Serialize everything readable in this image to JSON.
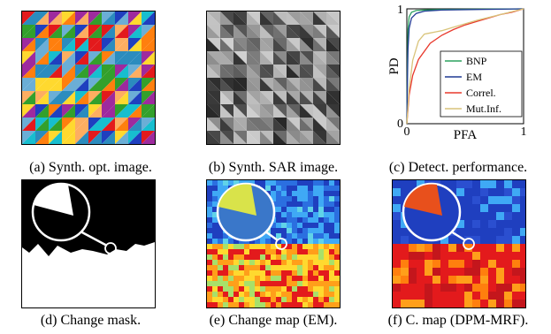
{
  "captions": {
    "a": "(a) Synth. opt. image.",
    "b": "(b) Synth. SAR image.",
    "c": "(c) Detect. performance.",
    "d": "(d) Change mask.",
    "e": "(e) Change map (EM).",
    "f": "(f) C. map (DPM-MRF)."
  },
  "chart_data": {
    "type": "line",
    "xlabel": "PFA",
    "ylabel": "PD",
    "xlim": [
      0,
      1
    ],
    "ylim": [
      0,
      1
    ],
    "xticks": [
      "0",
      "1"
    ],
    "yticks": [
      "0",
      "1"
    ],
    "legend_position": "bottom-right",
    "series": [
      {
        "name": "BNP",
        "color": "#2ca25f",
        "x": [
          0,
          0.005,
          0.01,
          0.02,
          0.04,
          0.08,
          0.15,
          0.3,
          1
        ],
        "y": [
          0,
          0.55,
          0.82,
          0.93,
          0.97,
          0.985,
          0.99,
          0.995,
          1
        ]
      },
      {
        "name": "EM",
        "color": "#1f3a93",
        "x": [
          0,
          0.005,
          0.01,
          0.02,
          0.04,
          0.08,
          0.15,
          0.3,
          1
        ],
        "y": [
          0,
          0.4,
          0.65,
          0.83,
          0.92,
          0.96,
          0.98,
          0.99,
          1
        ]
      },
      {
        "name": "Correl.",
        "color": "#e8382b",
        "x": [
          0,
          0.02,
          0.05,
          0.1,
          0.2,
          0.3,
          0.4,
          0.5,
          0.6,
          0.7,
          0.8,
          0.9,
          1
        ],
        "y": [
          0,
          0.25,
          0.42,
          0.56,
          0.7,
          0.77,
          0.82,
          0.86,
          0.89,
          0.92,
          0.95,
          0.97,
          1
        ]
      },
      {
        "name": "Mut.Inf.",
        "color": "#d9c47a",
        "x": [
          0,
          0.02,
          0.05,
          0.1,
          0.15,
          0.2,
          0.25,
          0.3,
          0.4,
          0.6,
          0.8,
          1
        ],
        "y": [
          0,
          0.3,
          0.55,
          0.72,
          0.78,
          0.79,
          0.8,
          0.81,
          0.84,
          0.9,
          0.95,
          1
        ]
      }
    ]
  },
  "colors": {
    "jet_red": "#e31a1c",
    "jet_blue": "#1f3fbf",
    "sar_gray": "#8c8c8c"
  }
}
